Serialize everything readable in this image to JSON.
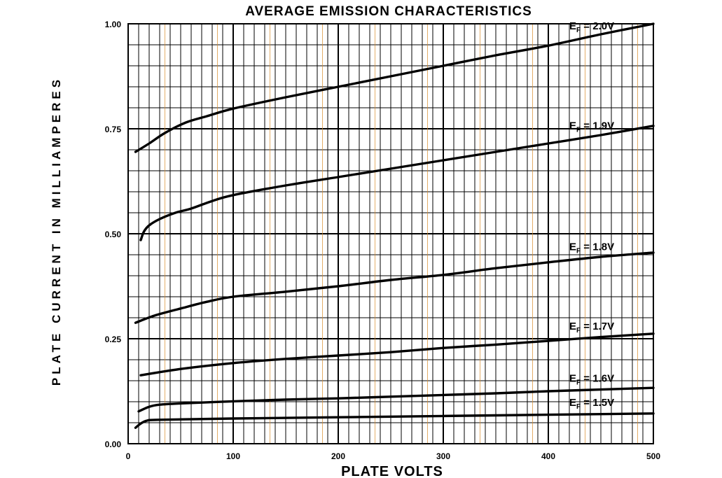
{
  "chart_data": {
    "type": "line",
    "title": "AVERAGE EMISSION CHARACTERISTICS",
    "xlabel": "PLATE VOLTS",
    "ylabel": "PLATE CURRENT IN MILLIAMPERES",
    "xlim": [
      0,
      500
    ],
    "ylim": [
      0,
      1.0
    ],
    "x_ticks": [
      "0",
      "100",
      "200",
      "300",
      "400",
      "500"
    ],
    "y_ticks": [
      "0.00",
      "0.25",
      "0.50",
      "0.75",
      "1.00"
    ],
    "grid": true,
    "series": [
      {
        "name": "2.0V",
        "x": [
          7,
          20,
          35,
          55,
          75,
          100,
          150,
          200,
          250,
          300,
          350,
          400,
          450,
          500
        ],
        "y": [
          0.695,
          0.715,
          0.74,
          0.765,
          0.78,
          0.798,
          0.825,
          0.85,
          0.875,
          0.9,
          0.925,
          0.948,
          0.975,
          1.0
        ]
      },
      {
        "name": "1.9V",
        "x": [
          12,
          15,
          20,
          30,
          45,
          60,
          80,
          100,
          150,
          200,
          250,
          300,
          350,
          400,
          450,
          500
        ],
        "y": [
          0.485,
          0.505,
          0.52,
          0.535,
          0.55,
          0.56,
          0.578,
          0.592,
          0.615,
          0.635,
          0.655,
          0.675,
          0.695,
          0.715,
          0.735,
          0.757
        ]
      },
      {
        "name": "1.8V",
        "x": [
          7,
          25,
          50,
          75,
          100,
          150,
          200,
          250,
          300,
          350,
          400,
          450,
          500
        ],
        "y": [
          0.288,
          0.305,
          0.322,
          0.338,
          0.35,
          0.362,
          0.375,
          0.39,
          0.402,
          0.418,
          0.432,
          0.445,
          0.455
        ]
      },
      {
        "name": "1.7V",
        "x": [
          12,
          50,
          100,
          150,
          200,
          250,
          300,
          350,
          400,
          450,
          500
        ],
        "y": [
          0.163,
          0.178,
          0.192,
          0.202,
          0.21,
          0.218,
          0.228,
          0.236,
          0.245,
          0.254,
          0.262
        ]
      },
      {
        "name": "1.6V",
        "x": [
          10,
          20,
          30,
          50,
          100,
          150,
          200,
          250,
          300,
          350,
          400,
          450,
          500
        ],
        "y": [
          0.077,
          0.088,
          0.093,
          0.096,
          0.101,
          0.105,
          0.108,
          0.112,
          0.116,
          0.12,
          0.125,
          0.129,
          0.133
        ]
      },
      {
        "name": "1.5V",
        "x": [
          7,
          12,
          18,
          30,
          100,
          200,
          300,
          400,
          500
        ],
        "y": [
          0.038,
          0.048,
          0.055,
          0.057,
          0.06,
          0.063,
          0.066,
          0.069,
          0.072
        ]
      }
    ],
    "series_labels": [
      {
        "series": "2.0V",
        "prefix": "E",
        "sub": "F",
        "text": " = 2.0V"
      },
      {
        "series": "1.9V",
        "prefix": "E",
        "sub": "F",
        "text": " = 1.9V"
      },
      {
        "series": "1.8V",
        "prefix": "E",
        "sub": "F",
        "text": " = 1.8V"
      },
      {
        "series": "1.7V",
        "prefix": "E",
        "sub": "F",
        "text": " = 1.7V"
      },
      {
        "series": "1.6V",
        "prefix": "E",
        "sub": "F",
        "text": " = 1.6V"
      },
      {
        "series": "1.5V",
        "prefix": "E",
        "sub": "F",
        "text": " = 1.5V"
      }
    ]
  }
}
